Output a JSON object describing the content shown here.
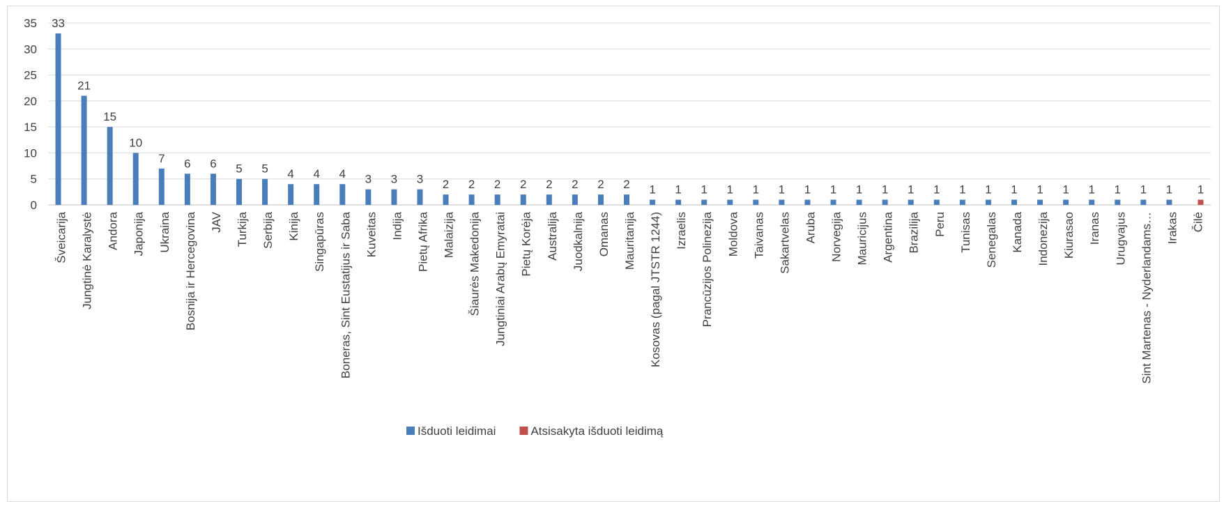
{
  "chart_data": {
    "type": "bar",
    "ylim": [
      0,
      35
    ],
    "yticks": [
      0,
      5,
      10,
      15,
      20,
      25,
      30,
      35
    ],
    "grid": true,
    "legend_position": "bottom",
    "categories": [
      "Šveicarija",
      "Jungtinė Karalystė",
      "Andora",
      "Japonija",
      "Ukraina",
      "Bosnija ir Hercegovina",
      "JAV",
      "Turkija",
      "Serbija",
      "Kinija",
      "Singapūras",
      "Boneras, Sint Eustatijus ir Saba",
      "Kuveitas",
      "Indija",
      "Pietų Afrika",
      "Malaizija",
      "Šiaurės Makedonija",
      "Jungtiniai Arabų Emyratai",
      "Pietų Korėja",
      "Australija",
      "Juodkalnija",
      "Omanas",
      "Mauritanija",
      "Kosovas (pagal JTSTR 1244)",
      "Izraelis",
      "Prancūzijos Polinezija",
      "Moldova",
      "Taivanas",
      "Sakartvelas",
      "Aruba",
      "Norvegija",
      "Mauricijus",
      "Argentina",
      "Brazilija",
      "Peru",
      "Tunisas",
      "Senegalas",
      "Kanada",
      "Indonezija",
      "Kiurasao",
      "Iranas",
      "Urugvajus",
      "Sint Martenas - Nyderlandams…",
      "Irakas",
      "Čilė"
    ],
    "series": [
      {
        "name": "Išduoti leidimai",
        "color": "#4a7ebb",
        "values": [
          33,
          21,
          15,
          10,
          7,
          6,
          6,
          5,
          5,
          4,
          4,
          4,
          3,
          3,
          3,
          2,
          2,
          2,
          2,
          2,
          2,
          2,
          2,
          1,
          1,
          1,
          1,
          1,
          1,
          1,
          1,
          1,
          1,
          1,
          1,
          1,
          1,
          1,
          1,
          1,
          1,
          1,
          1,
          1,
          0
        ]
      },
      {
        "name": "Atsisakyta išduoti leidimą",
        "color": "#c0504d",
        "values": [
          0,
          0,
          0,
          0,
          0,
          0,
          0,
          0,
          0,
          0,
          0,
          0,
          0,
          0,
          0,
          0,
          0,
          0,
          0,
          0,
          0,
          0,
          0,
          0,
          0,
          0,
          0,
          0,
          0,
          0,
          0,
          0,
          0,
          0,
          0,
          0,
          0,
          0,
          0,
          0,
          0,
          0,
          0,
          0,
          1
        ]
      }
    ]
  }
}
